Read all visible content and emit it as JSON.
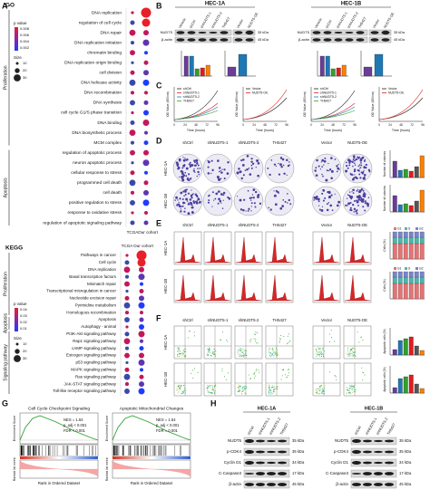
{
  "panels": {
    "A": {
      "letter": "A",
      "go": {
        "label": "GO",
        "legend_title": "p value",
        "legend_ticks": [
          0.008,
          0.006,
          0.004,
          0.002
        ],
        "size_title": "Size",
        "size_ticks": [
          10,
          20,
          30
        ],
        "groups": [
          "Proliferation",
          "Apoptosis"
        ],
        "terms": [
          "DNA replication",
          "regulation of cell cycle",
          "DNA repair",
          "DNA replication initiation",
          "chromatin binding",
          "DNA replication origin binding",
          "cell division",
          "DNA helicase activity",
          "DNA recombination",
          "DNA synthesis",
          "cell cycle G1/S phase transition",
          "DNA binding",
          "DNA biosynthetic process",
          "MCM complex",
          "regulation of apoptotic process",
          "neuron apoptotic process",
          "cellular response to stress",
          "programmed cell death",
          "cell death",
          "positive regulation to stress",
          "response to oxidative stress",
          "regulation of apoptotic signaling pathway"
        ],
        "columns": [
          "TCGA",
          "Our cohort"
        ]
      },
      "kegg": {
        "label": "KEGG",
        "legend_title": "p value",
        "legend_ticks": [
          0.04,
          0.03,
          0.02,
          0.01
        ],
        "size_title": "Size",
        "size_ticks": [
          10,
          20,
          30
        ],
        "groups": [
          "Proliferation",
          "Apoptosis",
          "Signaling pathway"
        ],
        "terms": [
          "Pathways in cancer",
          "Cell cycle",
          "DNA replication",
          "Basal transcription factors",
          "Mismatch repair",
          "Transcriptional misregulation in cancer",
          "Nucleotide excision repair",
          "Pyrimidine metabolism",
          "Homologous recombination",
          "Apoptosis",
          "Autophagy - animal",
          "PI3K-Akt signaling pathway",
          "Rap1 signaling pathway",
          "cAMP signaling pathway",
          "Estrogen signaling pathway",
          "p53 signaling pathway",
          "MAPK signaling pathway",
          "Ras signaling pathway",
          "JAK-STAT signaling pathway",
          "Toll-like receptor signaling pathway"
        ],
        "columns": [
          "TCGA",
          "Our cohort"
        ]
      }
    },
    "B": {
      "letter": "B",
      "cells": [
        "HEC-1A",
        "HEC-1B"
      ],
      "lanes": [
        "Vehicle",
        "shCtrl",
        "shNUDT5-1",
        "shNUDT5-2",
        "TH5427"
      ],
      "oe_lanes": [
        "Vector",
        "NUDT5-OE"
      ],
      "proteins": [
        "NUDT5",
        "β-actin"
      ],
      "kda": [
        "35 kDa",
        "45 kDa"
      ]
    },
    "C": {
      "letter": "C",
      "legend_kd": [
        "shCtrl",
        "shNUDT5-1",
        "shNUDT5-2",
        "TH5427"
      ],
      "legend_oe": [
        "Vector",
        "NUDT5-OE"
      ],
      "ylabel": "OD Value (450nm)",
      "xlabel": "Time (hours)",
      "xticks": [
        0,
        24,
        48,
        72,
        96
      ]
    },
    "D": {
      "letter": "D",
      "groups": [
        "shCtrl",
        "shNUDT5-1",
        "shNUDT5-2",
        "TH5427",
        "Vector",
        "NUDT5-OE"
      ],
      "cells": [
        "HEC-1A",
        "HEC-1B"
      ],
      "ylabel": "Number of colonies"
    },
    "E": {
      "letter": "E",
      "groups": [
        "shCtrl",
        "shNUDT5-1",
        "shNUDT5-2",
        "TH5427",
        "Vector",
        "NUDT5-OE"
      ],
      "cells": [
        "HEC-1A",
        "HEC-1B"
      ],
      "ylabel": "Cells (%)",
      "phases": [
        "G1",
        "S",
        "G2"
      ]
    },
    "F": {
      "letter": "F",
      "groups": [
        "shCtrl",
        "shNUDT5-1",
        "shNUDT5-2",
        "TH5427",
        "Vector",
        "NUDT5-OE"
      ],
      "cells": [
        "HEC-1A",
        "HEC-1B"
      ],
      "ylabel": "Apoptotic cells (%)"
    },
    "G": {
      "letter": "G",
      "ylabel_top": "Enrichment Score",
      "ylabel_bottom": "Ranked list metric",
      "xlabel": "Rank in Ordered Dataset",
      "plots": [
        {
          "title": "Cell Cycle Checkpoint Signaling",
          "stats": [
            "NES = 1.64",
            "p. adj < 0.001",
            "FDR < 0.001"
          ]
        },
        {
          "title": "Apoptotic Mitochondrial Changes",
          "stats": [
            "NES = 1.54",
            "p. adj < 0.001",
            "FDR = 0.001"
          ]
        }
      ]
    },
    "H": {
      "letter": "H",
      "cells": [
        "HEC-1A",
        "HEC-1B"
      ],
      "lanes": [
        "shCtrl",
        "shNUDT5-1",
        "shNUDT5-2",
        "TH5427"
      ],
      "proteins": [
        "NUDT5",
        "p-CDK4",
        "Cyclin D1",
        "C-Caspase3",
        "β-actin"
      ],
      "kda": [
        "35 kDa",
        "35 kDa",
        "34 kDa",
        "17 kDa",
        "45 kDa"
      ]
    }
  }
}
